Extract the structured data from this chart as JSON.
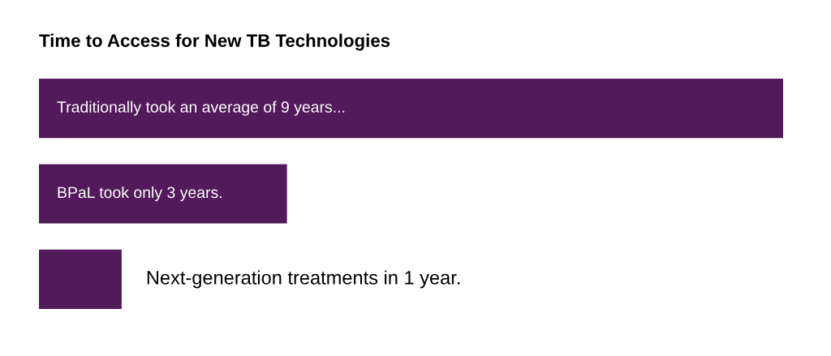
{
  "chart_data": {
    "type": "bar",
    "orientation": "horizontal",
    "title": "Time to Access for New TB Technologies",
    "categories": [
      null,
      null,
      null
    ],
    "values": [
      9,
      3,
      1
    ],
    "color": "#521a5a",
    "value_labels": [
      "Traditionally took an average of 9 years...",
      "BPaL took only 3 years.",
      "Next-generation treatments in 1 year."
    ]
  }
}
